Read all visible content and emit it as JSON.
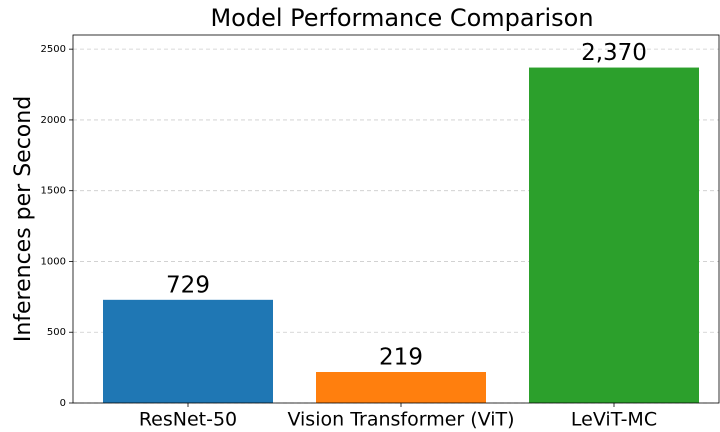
{
  "chart_data": {
    "type": "bar",
    "title": "Model Performance Comparison",
    "y_label": "Inferences per Second",
    "categories": [
      "ResNet-50",
      "Vision Transformer (ViT)",
      "LeViT-MC"
    ],
    "values": [
      729,
      219,
      2370
    ],
    "value_labels": [
      "729",
      "219",
      "2,370"
    ],
    "colors": [
      "#1f77b4",
      "#ff7f0e",
      "#2ca02c"
    ],
    "ylim": [
      0,
      2600
    ],
    "yticks": [
      0,
      500,
      1000,
      1500,
      2000,
      2500
    ],
    "grid": true
  }
}
